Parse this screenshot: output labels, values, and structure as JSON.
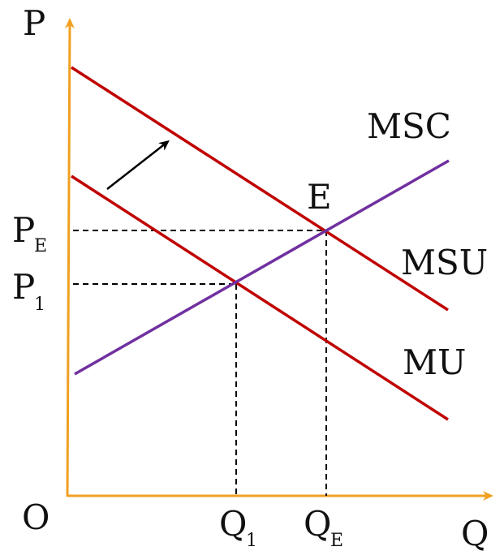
{
  "labels": {
    "y_axis": "P",
    "x_axis": "Q",
    "origin": "O",
    "msc": "MSC",
    "msu": "MSU",
    "mu": "MU",
    "equilibrium": "E",
    "p_e": {
      "main": "P",
      "sub": "E"
    },
    "p_1": {
      "main": "P",
      "sub": "1"
    },
    "q_1": {
      "main": "Q",
      "sub": "1"
    },
    "q_e": {
      "main": "Q",
      "sub": "E"
    }
  },
  "colors": {
    "axes": "#f0a020",
    "demand_curves": "#c00000",
    "supply_curve": "#7030a0",
    "guides": "#000000",
    "text": "#111111"
  }
}
